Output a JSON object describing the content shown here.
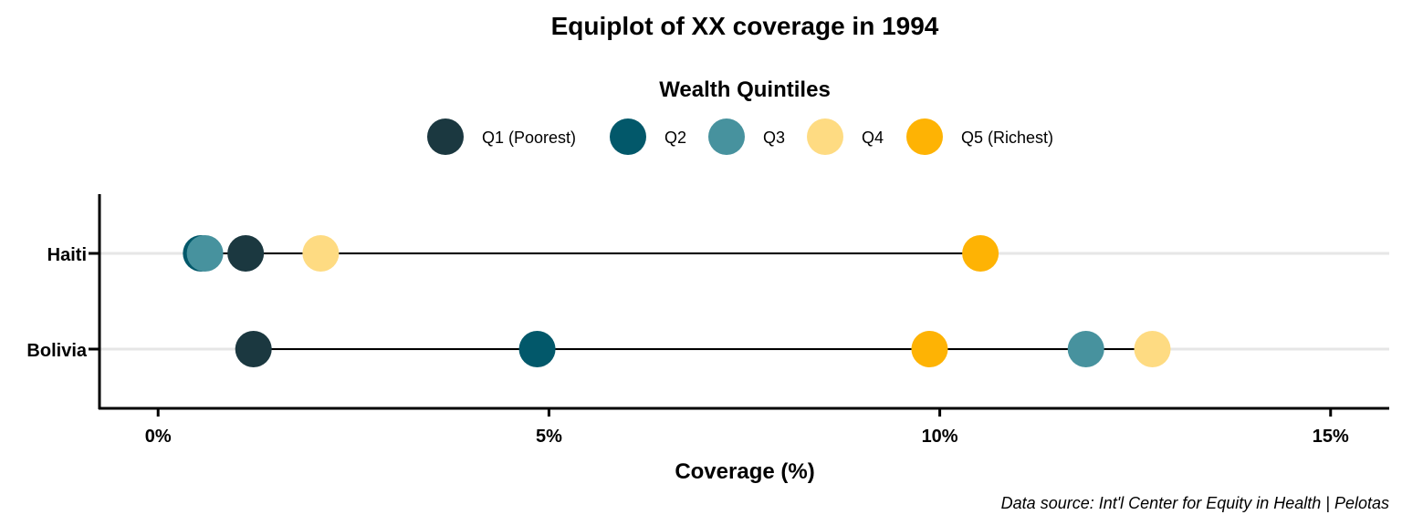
{
  "chart_data": {
    "type": "scatter",
    "subtype": "dumbbell",
    "title": "Equiplot of XX coverage in 1994",
    "xlabel": "Coverage (%)",
    "ylabel": "",
    "caption": "Data source: Int'l Center for Equity in Health | Pelotas",
    "legend": {
      "title": "Wealth Quintiles",
      "position": "top",
      "entries": [
        {
          "name": "Q1 (Poorest)",
          "color": "#1b3840"
        },
        {
          "name": "Q2",
          "color": "#02586a"
        },
        {
          "name": "Q3",
          "color": "#47929e"
        },
        {
          "name": "Q4",
          "color": "#fedb82"
        },
        {
          "name": "Q5 (Richest)",
          "color": "#feb304"
        }
      ]
    },
    "xlim": [
      -0.75,
      15.75
    ],
    "x_ticks": [
      0,
      5,
      10,
      15
    ],
    "x_tick_labels": [
      "0%",
      "5%",
      "10%",
      "15%"
    ],
    "grid": "horizontal major only",
    "categories": [
      "Haiti",
      "Bolivia"
    ],
    "series": [
      {
        "name": "Q1 (Poorest)",
        "values": [
          1.12,
          1.22
        ]
      },
      {
        "name": "Q2",
        "values": [
          0.55,
          4.85
        ]
      },
      {
        "name": "Q3",
        "values": [
          0.6,
          11.87
        ]
      },
      {
        "name": "Q4",
        "values": [
          2.08,
          12.72
        ]
      },
      {
        "name": "Q5 (Richest)",
        "values": [
          10.52,
          9.87
        ]
      }
    ]
  }
}
